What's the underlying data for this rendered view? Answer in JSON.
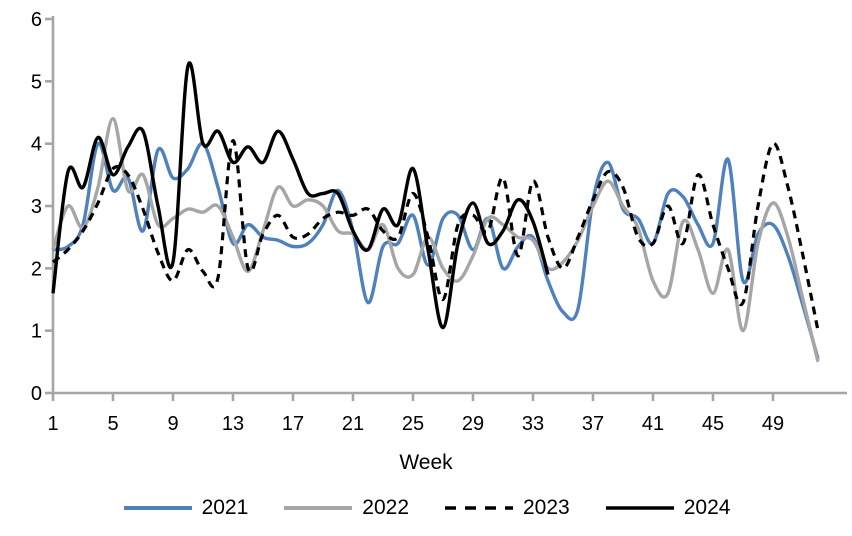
{
  "colors": {
    "axis": "#A6A6A6",
    "tick_text": "#000000",
    "background": "#FFFFFF",
    "series_2021": "#4F81BD",
    "series_2022": "#A6A6A6",
    "series_2023": "#000000",
    "series_2024": "#000000"
  },
  "chart_data": {
    "type": "line",
    "title": "",
    "xlabel": "Week",
    "ylabel": "",
    "grid": false,
    "smoothed_lines": true,
    "legend_position": "bottom",
    "xlim": [
      1,
      53
    ],
    "ylim": [
      0,
      6
    ],
    "x_tick_labels": [
      "1",
      "5",
      "9",
      "13",
      "17",
      "21",
      "25",
      "29",
      "33",
      "37",
      "41",
      "45",
      "49"
    ],
    "x_tick_weeks": [
      1,
      5,
      9,
      13,
      17,
      21,
      25,
      29,
      33,
      37,
      41,
      45,
      49
    ],
    "y_tick_labels": [
      "0",
      "1",
      "2",
      "3",
      "4",
      "5",
      "6"
    ],
    "y_tick_values": [
      0,
      1,
      2,
      3,
      4,
      5,
      6
    ],
    "x_start_week": 1,
    "series": [
      {
        "name": "2021",
        "color": "#4F81BD",
        "style": "solid",
        "first_week": 1,
        "values": [
          2.3,
          2.35,
          2.7,
          4.0,
          3.25,
          3.45,
          2.6,
          3.9,
          3.45,
          3.6,
          4.0,
          3.3,
          2.4,
          2.7,
          2.5,
          2.45,
          2.35,
          2.4,
          2.7,
          3.25,
          2.6,
          1.45,
          2.35,
          2.4,
          2.85,
          2.05,
          2.8,
          2.85,
          2.3,
          2.8,
          2.0,
          2.35,
          2.5,
          1.8,
          1.3,
          1.35,
          3.1,
          3.7,
          2.95,
          2.8,
          2.4,
          3.2,
          3.15,
          2.7,
          2.4,
          3.75,
          1.8,
          2.55,
          2.7,
          2.2,
          1.4,
          0.55
        ]
      },
      {
        "name": "2022",
        "color": "#A6A6A6",
        "style": "solid",
        "first_week": 1,
        "values": [
          2.3,
          3.0,
          2.65,
          3.3,
          4.4,
          3.25,
          3.5,
          2.7,
          2.8,
          2.95,
          2.9,
          3.0,
          2.5,
          1.95,
          2.6,
          3.3,
          3.0,
          3.1,
          3.0,
          2.6,
          2.55,
          2.3,
          2.7,
          2.0,
          1.9,
          2.5,
          2.0,
          1.8,
          2.2,
          2.8,
          2.7,
          2.5,
          2.45,
          2.0,
          2.1,
          2.45,
          3.0,
          3.4,
          3.0,
          2.65,
          1.8,
          1.6,
          2.75,
          2.3,
          1.6,
          2.3,
          1.0,
          2.4,
          3.05,
          2.5,
          1.5,
          0.5
        ]
      },
      {
        "name": "2023",
        "color": "#000000",
        "style": "dashed",
        "first_week": 1,
        "values": [
          2.1,
          2.3,
          2.6,
          3.05,
          3.6,
          3.5,
          2.95,
          2.25,
          1.8,
          2.3,
          1.95,
          1.85,
          4.05,
          2.0,
          2.55,
          2.85,
          2.5,
          2.55,
          2.8,
          2.9,
          2.85,
          2.95,
          2.6,
          2.5,
          3.2,
          2.5,
          1.5,
          2.7,
          2.85,
          2.6,
          3.45,
          2.2,
          3.4,
          2.5,
          2.0,
          2.5,
          3.1,
          3.55,
          3.3,
          2.5,
          2.4,
          3.0,
          2.4,
          3.5,
          2.7,
          2.0,
          1.45,
          3.0,
          4.0,
          3.3,
          2.2,
          1.0
        ]
      },
      {
        "name": "2024",
        "color": "#000000",
        "style": "solid",
        "first_week": 1,
        "values": [
          1.6,
          3.55,
          3.3,
          4.1,
          3.5,
          3.95,
          4.2,
          3.0,
          2.1,
          5.25,
          4.0,
          4.2,
          3.7,
          3.95,
          3.7,
          4.2,
          3.75,
          3.2,
          3.2,
          3.2,
          2.6,
          2.3,
          2.95,
          2.7,
          3.6,
          2.3,
          1.05,
          2.4,
          3.05,
          2.4,
          2.6,
          3.1,
          2.75,
          1.9
        ]
      }
    ]
  }
}
